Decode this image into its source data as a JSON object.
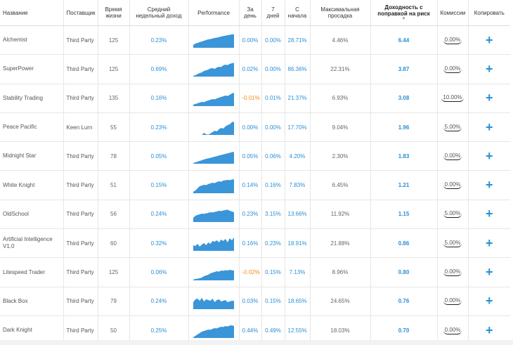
{
  "headers": {
    "name": "Название",
    "provider": "Поставщик",
    "lifetime": "Время жизни",
    "avg_weekly": "Средний недельный доход",
    "performance": "Performance",
    "day": "За день",
    "week": "7 дней",
    "since_start": "С начала",
    "max_drawdown": "Максимальная просадка",
    "risk_adjusted": "Доходность с поправкой на риск",
    "sort_arrow": "▼",
    "commission": "Комиссии",
    "copy": "Копировать"
  },
  "colors": {
    "accent": "#2b8fd6",
    "negative": "#f08c1a",
    "chart_fill": "#3b95d9"
  },
  "rows": [
    {
      "name": "Alchemist",
      "provider": "Third Party",
      "lifetime": "125",
      "avg_weekly": "0.23%",
      "day": "0.00%",
      "week": "0.00%",
      "since_start": "28.71%",
      "drawdown": "4.46%",
      "risk": "6.44",
      "commission": "0.00%",
      "copy_icon": "plus-icon",
      "day_negative": false,
      "shape": [
        0.2,
        0.3,
        0.35,
        0.4,
        0.45,
        0.5,
        0.55,
        0.6,
        0.62,
        0.66,
        0.7,
        0.72,
        0.76,
        0.8,
        0.84,
        0.86,
        0.9,
        0.92,
        0.95,
        0.97
      ]
    },
    {
      "name": "SuperPower",
      "provider": "Third Party",
      "lifetime": "125",
      "avg_weekly": "0.69%",
      "day": "0.02%",
      "week": "0.00%",
      "since_start": "86.36%",
      "drawdown": "22.31%",
      "risk": "3.87",
      "commission": "0.00%",
      "copy_icon": "plus-icon",
      "day_negative": false,
      "shape": [
        0.05,
        0.1,
        0.18,
        0.25,
        0.3,
        0.4,
        0.45,
        0.5,
        0.58,
        0.6,
        0.55,
        0.65,
        0.7,
        0.68,
        0.8,
        0.85,
        0.82,
        0.9,
        0.95,
        0.98
      ]
    },
    {
      "name": "Stability Trading",
      "provider": "Third Party",
      "lifetime": "135",
      "avg_weekly": "0.16%",
      "day": "-0.01%",
      "week": "0.01%",
      "since_start": "21.37%",
      "drawdown": "6.93%",
      "risk": "3.08",
      "commission": "10.00%",
      "copy_icon": "plus-icon",
      "day_negative": true,
      "shape": [
        0.1,
        0.15,
        0.2,
        0.25,
        0.3,
        0.28,
        0.35,
        0.4,
        0.45,
        0.5,
        0.48,
        0.55,
        0.6,
        0.65,
        0.7,
        0.75,
        0.72,
        0.8,
        0.9,
        0.95
      ]
    },
    {
      "name": "Peace Pacific",
      "provider": "Keen Lurn",
      "lifetime": "55",
      "avg_weekly": "0.23%",
      "day": "0.00%",
      "week": "0.00%",
      "since_start": "17.70%",
      "drawdown": "9.04%",
      "risk": "1.96",
      "commission": "5.00%",
      "copy_icon": "plus-icon",
      "day_negative": false,
      "shape": [
        0,
        0,
        0,
        0,
        0,
        0.15,
        0.05,
        0.02,
        0.1,
        0.2,
        0.3,
        0.25,
        0.4,
        0.5,
        0.45,
        0.6,
        0.7,
        0.75,
        0.9,
        0.95
      ]
    },
    {
      "name": "Midnight Star",
      "provider": "Third Party",
      "lifetime": "78",
      "avg_weekly": "0.05%",
      "day": "0.05%",
      "week": "0.06%",
      "since_start": "4.20%",
      "drawdown": "2.30%",
      "risk": "1.83",
      "commission": "0.00%",
      "copy_icon": "plus-icon",
      "day_negative": false,
      "shape": [
        0.05,
        0.1,
        0.15,
        0.2,
        0.25,
        0.3,
        0.35,
        0.38,
        0.42,
        0.46,
        0.5,
        0.54,
        0.58,
        0.62,
        0.66,
        0.7,
        0.74,
        0.78,
        0.82,
        0.85
      ]
    },
    {
      "name": "White Knight",
      "provider": "Third Party",
      "lifetime": "51",
      "avg_weekly": "0.15%",
      "day": "0.14%",
      "week": "0.16%",
      "since_start": "7.83%",
      "drawdown": "6.45%",
      "risk": "1.21",
      "commission": "0.00%",
      "copy_icon": "plus-icon",
      "day_negative": false,
      "shape": [
        0.1,
        0.2,
        0.35,
        0.5,
        0.55,
        0.6,
        0.58,
        0.65,
        0.7,
        0.75,
        0.72,
        0.8,
        0.85,
        0.82,
        0.9,
        0.92,
        0.95,
        0.93,
        0.97,
        1.0
      ]
    },
    {
      "name": "OldSchool",
      "provider": "Third Party",
      "lifetime": "56",
      "avg_weekly": "0.24%",
      "day": "0.23%",
      "week": "3.15%",
      "since_start": "13.66%",
      "drawdown": "11.92%",
      "risk": "1.15",
      "commission": "5.00%",
      "copy_icon": "plus-icon",
      "day_negative": false,
      "shape": [
        0.3,
        0.45,
        0.5,
        0.55,
        0.6,
        0.58,
        0.62,
        0.65,
        0.7,
        0.68,
        0.72,
        0.75,
        0.8,
        0.78,
        0.82,
        0.85,
        0.88,
        0.8,
        0.75,
        0.7
      ]
    },
    {
      "name": "Artificial Intelligence V1.0",
      "provider": "Third Party",
      "lifetime": "60",
      "avg_weekly": "0.32%",
      "day": "0.16%",
      "week": "0.23%",
      "since_start": "18.91%",
      "drawdown": "21.88%",
      "risk": "0.86",
      "commission": "5.00%",
      "copy_icon": "plus-icon",
      "day_negative": false,
      "shape": [
        0.4,
        0.35,
        0.5,
        0.3,
        0.45,
        0.55,
        0.4,
        0.6,
        0.5,
        0.7,
        0.65,
        0.75,
        0.6,
        0.8,
        0.7,
        0.85,
        0.6,
        0.9,
        0.75,
        0.95
      ]
    },
    {
      "name": "Litespeed Trader",
      "provider": "Third Party",
      "lifetime": "125",
      "avg_weekly": "0.06%",
      "day": "-0.02%",
      "week": "0.15%",
      "since_start": "7.13%",
      "drawdown": "8.96%",
      "risk": "0.80",
      "commission": "0.00%",
      "copy_icon": "plus-icon",
      "day_negative": true,
      "shape": [
        0.05,
        0.1,
        0.12,
        0.15,
        0.2,
        0.3,
        0.35,
        0.4,
        0.5,
        0.55,
        0.6,
        0.65,
        0.62,
        0.7,
        0.68,
        0.72,
        0.7,
        0.75,
        0.72,
        0.7
      ]
    },
    {
      "name": "Black Box",
      "provider": "Third Party",
      "lifetime": "79",
      "avg_weekly": "0.24%",
      "day": "0.03%",
      "week": "0.15%",
      "since_start": "18.65%",
      "drawdown": "24.65%",
      "risk": "0.76",
      "commission": "0.00%",
      "copy_icon": "plus-icon",
      "day_negative": false,
      "shape": [
        0.5,
        0.7,
        0.75,
        0.6,
        0.8,
        0.55,
        0.7,
        0.65,
        0.6,
        0.75,
        0.5,
        0.65,
        0.7,
        0.55,
        0.6,
        0.65,
        0.5,
        0.55,
        0.6,
        0.58
      ]
    },
    {
      "name": "Dark Knight",
      "provider": "Third Party",
      "lifetime": "50",
      "avg_weekly": "0.25%",
      "day": "0.44%",
      "week": "0.49%",
      "since_start": "12.55%",
      "drawdown": "18.03%",
      "risk": "0.70",
      "commission": "0.00%",
      "copy_icon": "plus-icon",
      "day_negative": false,
      "shape": [
        0.05,
        0.15,
        0.25,
        0.35,
        0.45,
        0.5,
        0.55,
        0.6,
        0.58,
        0.65,
        0.7,
        0.68,
        0.75,
        0.8,
        0.78,
        0.85,
        0.82,
        0.88,
        0.9,
        0.85
      ]
    }
  ]
}
